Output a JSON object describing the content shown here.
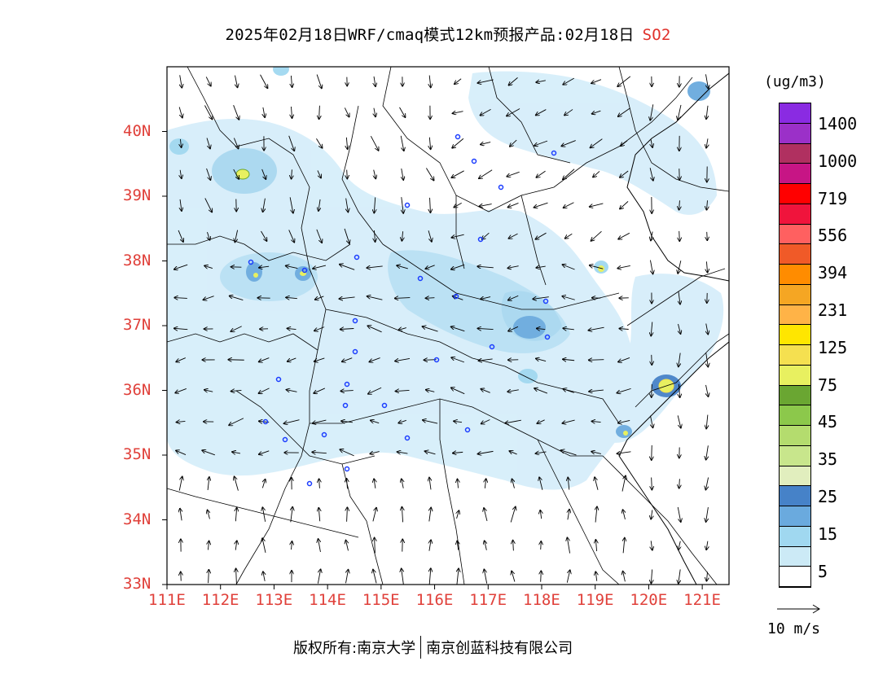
{
  "title": {
    "text": "2025年02月18日WRF/cmaq模式12km预报产品:02月18日",
    "variable": "SO2"
  },
  "map": {
    "lon_range": [
      111,
      121.5
    ],
    "lat_range": [
      33,
      41
    ],
    "lon_ticks": [
      "111E",
      "112E",
      "113E",
      "114E",
      "115E",
      "116E",
      "117E",
      "118E",
      "119E",
      "120E",
      "121E"
    ],
    "lat_ticks": [
      "33N",
      "34N",
      "35N",
      "36N",
      "37N",
      "38N",
      "39N",
      "40N"
    ]
  },
  "legend": {
    "unit": "(ug/m3)",
    "labels": [
      "1400",
      "1000",
      "719",
      "556",
      "394",
      "231",
      "125",
      "75",
      "45",
      "35",
      "25",
      "15",
      "5"
    ],
    "colors": [
      "#8a2be2",
      "#9b30c8",
      "#b03060",
      "#c71585",
      "#ff0000",
      "#f0143c",
      "#ff6060",
      "#f05a28",
      "#ff8c00",
      "#f5a623",
      "#ffb347",
      "#ffe600",
      "#f5e050",
      "#e8f060",
      "#6aa632",
      "#8cc84b",
      "#b4dc6e",
      "#c8e68c",
      "#e1eebe",
      "#4682c8",
      "#6aaade",
      "#a0d8f0",
      "#cceaf6",
      "#ffffff"
    ]
  },
  "wind_reference": {
    "label": "10 m/s"
  },
  "footer": {
    "left": "版权所有:南京大学",
    "right": "南京创蓝科技有限公司"
  }
}
